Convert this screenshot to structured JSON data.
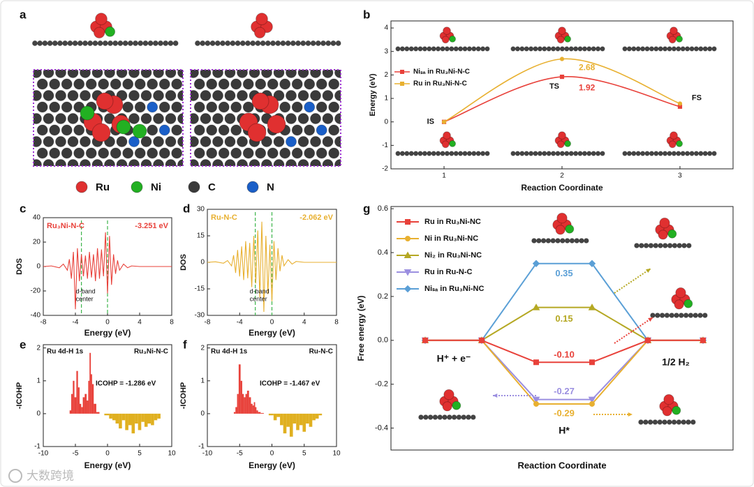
{
  "panel_a": {
    "label": "a",
    "legend": [
      {
        "name": "Ru",
        "color": "#e03030"
      },
      {
        "name": "Ni",
        "color": "#22b022"
      },
      {
        "name": "C",
        "color": "#3a3a3a"
      },
      {
        "name": "N",
        "color": "#1a5fc8"
      }
    ]
  },
  "watermark": "大数跨境",
  "chart_data": [
    {
      "type": "line",
      "label": "b",
      "smooth": true,
      "x": [
        1,
        2,
        3
      ],
      "xlim": [
        0.55,
        3.45
      ],
      "xticks": [
        1,
        2,
        3
      ],
      "ylim": [
        -2,
        4.3
      ],
      "yticks": [
        -2,
        -1,
        0,
        1,
        2,
        3,
        4
      ],
      "xlabel": "Reaction Coordinate",
      "ylabel": "Energy (eV)",
      "point_labels": [
        "IS",
        "TS",
        "FS"
      ],
      "series": [
        {
          "name": "Niₛₐ in Ru₃Ni-N-C",
          "color": "#e8413a",
          "marker": "square",
          "values": [
            0,
            1.92,
            0.65
          ]
        },
        {
          "name": "Ru in Ru₃Ni-N-C",
          "color": "#e8b030",
          "marker": "circle",
          "values": [
            0,
            2.68,
            0.78
          ]
        }
      ]
    },
    {
      "type": "line",
      "label": "c",
      "fill": false,
      "title": "Ru₃Ni-N-C",
      "xlabel": "Energy (eV)",
      "ylabel": "DOS",
      "xlim": [
        -8,
        8
      ],
      "xticks": [
        -8,
        -4,
        0,
        4,
        8
      ],
      "ylim": [
        -40,
        40
      ],
      "yticks": [
        -40,
        -20,
        0,
        20,
        40
      ],
      "d_band_center": {
        "value": -3.251,
        "label": "-3.251 eV"
      },
      "d_band_text": [
        "d-band",
        "center"
      ],
      "fermi_level": 0,
      "dash_color": "#3cb44b",
      "x": [
        -8,
        -7,
        -6,
        -5.5,
        -5,
        -4.75,
        -4.5,
        -4.25,
        -4,
        -3.75,
        -3.5,
        -3.25,
        -3,
        -2.75,
        -2.5,
        -2.25,
        -2,
        -1.75,
        -1.5,
        -1.25,
        -1,
        -0.75,
        -0.5,
        -0.25,
        0,
        0.25,
        0.5,
        0.75,
        1,
        1.25,
        1.5,
        2,
        2.5,
        3,
        4,
        6,
        8
      ],
      "series": [
        {
          "color": "#e8413a",
          "values": [
            0,
            0.5,
            -1,
            2,
            -3,
            6,
            -10,
            12,
            -35,
            15,
            -12,
            10,
            -8,
            9,
            -10,
            12,
            -9,
            10,
            -12,
            15,
            -10,
            14,
            -8,
            28,
            -22,
            25,
            -15,
            10,
            -6,
            5,
            -3,
            2,
            -1,
            0.5,
            0,
            0,
            0
          ]
        }
      ]
    },
    {
      "type": "line",
      "label": "d",
      "fill": false,
      "title": "Ru-N-C",
      "xlabel": "Energy (eV)",
      "ylabel": "DOS",
      "xlim": [
        -8,
        8
      ],
      "xticks": [
        -8,
        -4,
        0,
        4,
        8
      ],
      "ylim": [
        -30,
        30
      ],
      "yticks": [
        -30,
        -15,
        0,
        15,
        30
      ],
      "d_band_center": {
        "value": -2.062,
        "label": "-2.062 eV"
      },
      "d_band_text": [
        "d-band",
        "center"
      ],
      "fermi_level": 0,
      "dash_color": "#3cb44b",
      "x": [
        -8,
        -7,
        -6,
        -5.5,
        -5,
        -4.75,
        -4.5,
        -4.25,
        -4,
        -3.75,
        -3.5,
        -3.25,
        -3,
        -2.75,
        -2.5,
        -2.25,
        -2,
        -1.75,
        -1.5,
        -1.25,
        -1,
        -0.75,
        -0.5,
        -0.25,
        0,
        0.25,
        0.5,
        0.75,
        1,
        1.25,
        1.5,
        2,
        2.5,
        3,
        4,
        6,
        8
      ],
      "series": [
        {
          "color": "#e8b030",
          "values": [
            0,
            0.3,
            -0.5,
            1,
            -2,
            4,
            -6,
            7,
            -8,
            9,
            -10,
            12,
            -9,
            11,
            -14,
            15,
            -12,
            18,
            -20,
            23,
            -28,
            15,
            -18,
            10,
            -22,
            12,
            -10,
            8,
            -5,
            4,
            -2,
            1.5,
            -1,
            0.5,
            0,
            0,
            0
          ]
        }
      ]
    },
    {
      "type": "area",
      "label": "e",
      "title": "Ru 4d-H 1s",
      "system": "Ru₃Ni-N-C",
      "annotation": "ICOHP = -1.286 eV",
      "xlabel": "Energy (eV)",
      "ylabel": "-ICOHP",
      "xlim": [
        -10,
        10
      ],
      "xticks": [
        -10,
        -5,
        0,
        5,
        10
      ],
      "ylim": [
        -1,
        2.1
      ],
      "yticks": [
        -1,
        0,
        1,
        2
      ],
      "positive_color": "#e8413a",
      "negative_color": "#e0b020",
      "x": [
        -10,
        -6,
        -5.8,
        -5.5,
        -5.3,
        -5,
        -4.7,
        -4.5,
        -4.2,
        -4,
        -3.7,
        -3.4,
        -3.1,
        -2.9,
        -2.7,
        -2.5,
        -2.3,
        -2,
        -1.5,
        -1,
        0,
        0.5,
        1,
        1.5,
        2,
        2.5,
        3,
        3.5,
        4,
        4.5,
        5,
        5.5,
        6,
        6.5,
        7,
        7.5,
        8,
        8.5,
        10
      ],
      "values": [
        0,
        0,
        0.1,
        0.6,
        1.0,
        0.5,
        1.3,
        0.8,
        0.3,
        0.2,
        0.5,
        0.6,
        0.4,
        1.0,
        1.85,
        1.2,
        0.9,
        0.3,
        0.05,
        0,
        -0.05,
        -0.15,
        -0.2,
        -0.3,
        -0.45,
        -0.2,
        -0.5,
        -0.35,
        -0.6,
        -0.3,
        -0.5,
        -0.25,
        -0.4,
        -0.3,
        -0.35,
        -0.2,
        -0.15,
        0,
        0
      ]
    },
    {
      "type": "area",
      "label": "f",
      "title": "Ru 4d-H 1s",
      "system": "Ru-N-C",
      "annotation": "ICOHP = -1.467 eV",
      "xlabel": "Energy (eV)",
      "ylabel": "-ICOHP",
      "xlim": [
        -10,
        10
      ],
      "xticks": [
        -10,
        -5,
        0,
        5,
        10
      ],
      "ylim": [
        -1,
        2.1
      ],
      "yticks": [
        -1,
        0,
        1,
        2
      ],
      "positive_color": "#e8413a",
      "negative_color": "#e0b020",
      "x": [
        -10,
        -6,
        -5.8,
        -5.5,
        -5.3,
        -5,
        -4.7,
        -4.5,
        -4.2,
        -4,
        -3.7,
        -3.4,
        -3.1,
        -2.9,
        -2.7,
        -2.5,
        -2.3,
        -2,
        -1.5,
        -1,
        0,
        0.5,
        1,
        1.5,
        2,
        2.5,
        3,
        3.5,
        4,
        4.5,
        5,
        5.5,
        6,
        6.5,
        7,
        7.5,
        8,
        8.5,
        10
      ],
      "values": [
        0,
        0,
        0.05,
        0.2,
        0.6,
        1.5,
        1.0,
        0.6,
        0.5,
        0.6,
        0.7,
        0.5,
        0.3,
        0.25,
        0.35,
        0.2,
        0.1,
        0.05,
        0.02,
        0,
        -0.05,
        -0.2,
        -0.1,
        -0.35,
        -0.6,
        -0.4,
        -0.7,
        -0.3,
        -0.5,
        -0.35,
        -0.55,
        -0.3,
        -0.4,
        -0.2,
        -0.15,
        -0.05,
        0,
        0,
        0
      ]
    },
    {
      "type": "step",
      "label": "g",
      "xlabel": "Reaction Coordinate",
      "ylabel": "Free energy (eV)",
      "ylim": [
        -0.5,
        0.61
      ],
      "yticks": [
        -0.4,
        -0.2,
        {
          "value": 0,
          "label": "0.0"
        },
        0.2,
        0.4,
        0.6
      ],
      "states": [
        "H⁺ + e⁻",
        "H*",
        "1/2 H₂"
      ],
      "series": [
        {
          "name": "Ru in Ru₃Ni-NC",
          "color": "#e8413a",
          "marker": "square",
          "values": [
            0,
            -0.1,
            0
          ],
          "value_labels": [
            null,
            "-0.10",
            null
          ]
        },
        {
          "name": "Ni in Ru₃Ni-NC",
          "color": "#e8b030",
          "marker": "circle",
          "values": [
            0,
            -0.29,
            0
          ]
        },
        {
          "name": "Ni₂ in Ru₃Ni-NC",
          "color": "#b5a823",
          "marker": "triangle",
          "values": [
            0,
            0.15,
            0
          ]
        },
        {
          "name": "Ru in Ru-N-C",
          "color": "#9b8fe0",
          "marker": "down",
          "values": [
            0,
            -0.27,
            0
          ]
        },
        {
          "name": "Niₛₐ in Ru₃Ni-NC",
          "color": "#5a9fd6",
          "marker": "diamond",
          "values": [
            0,
            0.35,
            0
          ]
        }
      ]
    }
  ]
}
